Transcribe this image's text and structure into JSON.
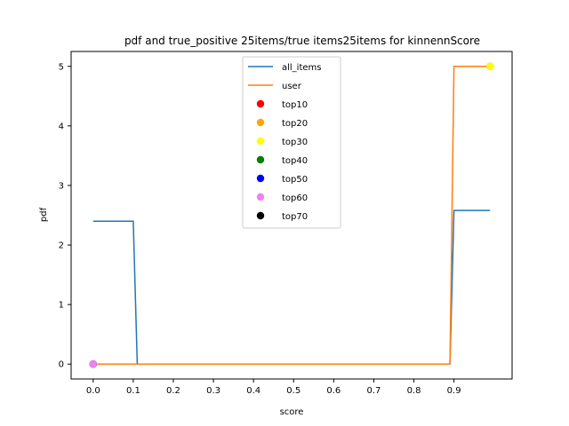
{
  "chart_data": {
    "type": "line",
    "title": "pdf and true_positive 25items/true items25items for kinnennScore",
    "xlabel": "score",
    "ylabel": "pdf",
    "xlim": [
      -0.055,
      1.045
    ],
    "ylim": [
      -0.25,
      5.25
    ],
    "xticks": [
      0.0,
      0.1,
      0.2,
      0.3,
      0.4,
      0.5,
      0.6,
      0.7,
      0.8,
      0.9
    ],
    "xtick_labels": [
      "0.0",
      "0.1",
      "0.2",
      "0.3",
      "0.4",
      "0.5",
      "0.6",
      "0.7",
      "0.8",
      "0.9"
    ],
    "yticks": [
      0,
      1,
      2,
      3,
      4,
      5
    ],
    "ytick_labels": [
      "0",
      "1",
      "2",
      "3",
      "4",
      "5"
    ],
    "grid": false,
    "legend_position": "top-center",
    "series": [
      {
        "name": "all_items",
        "type": "line",
        "color": "#1f77b4",
        "x": [
          0.0,
          0.1,
          0.11,
          0.89,
          0.9,
          0.99
        ],
        "y": [
          2.4,
          2.4,
          0.0,
          0.0,
          2.58,
          2.58
        ]
      },
      {
        "name": "user",
        "type": "line",
        "color": "#ff7f0e",
        "x": [
          0.0,
          0.89,
          0.9,
          0.99
        ],
        "y": [
          0.0,
          0.0,
          5.0,
          5.0
        ]
      },
      {
        "name": "top10",
        "type": "scatter",
        "color": "#ff0000",
        "x": [
          0.0,
          0.99
        ],
        "y": [
          0.0,
          5.0
        ]
      },
      {
        "name": "top20",
        "type": "scatter",
        "color": "#ffa500",
        "x": [
          0.0,
          0.99
        ],
        "y": [
          0.0,
          5.0
        ]
      },
      {
        "name": "top30",
        "type": "scatter",
        "color": "#ffff00",
        "x": [
          0.0,
          0.99
        ],
        "y": [
          0.0,
          5.0
        ]
      },
      {
        "name": "top40",
        "type": "scatter",
        "color": "#008000",
        "x": [
          0.0
        ],
        "y": [
          0.0
        ]
      },
      {
        "name": "top50",
        "type": "scatter",
        "color": "#0000ff",
        "x": [
          0.0
        ],
        "y": [
          0.0
        ]
      },
      {
        "name": "top60",
        "type": "scatter",
        "color": "#ee82ee",
        "x": [
          0.0
        ],
        "y": [
          0.0
        ]
      },
      {
        "name": "top70",
        "type": "scatter",
        "color": "#000000",
        "x": [],
        "y": []
      }
    ]
  }
}
